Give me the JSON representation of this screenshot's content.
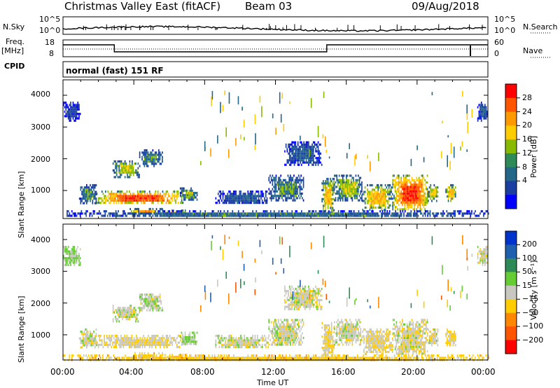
{
  "header": {
    "station": "Christmas Valley East (fitACF)",
    "beam": "Beam 03",
    "date": "09/Aug/2018"
  },
  "strip": {
    "nsky_label": "N.Sky",
    "nsky_ticks": [
      "10^5",
      "10^0"
    ],
    "nsearch_label": "N.Search",
    "nsearch_ticks": [
      "10^5",
      "10^0"
    ],
    "freq_label": "Freq.",
    "freq_unit": "[MHz]",
    "freq_ticks": [
      "18",
      "8"
    ],
    "nave_label": "Nave",
    "nave_ticks": [
      "60",
      "0"
    ],
    "cpid_label": "CPID",
    "cpid_value": "normal (fast) 151 RF",
    "nsky_line_color": "#000000",
    "freq_line_color": "#000000"
  },
  "panels": [
    {
      "id": "power",
      "ylabel": "Slant Range [km]",
      "yticks": [
        "4000",
        "3000",
        "2000",
        "1000"
      ],
      "colorbar": {
        "label": "Power [dB]",
        "ticks": [
          "28",
          "24",
          "20",
          "16",
          "12",
          "8",
          "4"
        ],
        "colors": [
          "#ff0000",
          "#ff5500",
          "#ff9900",
          "#ffcc00",
          "#88bb00",
          "#2e8b57",
          "#226688",
          "#1a3fa0",
          "#0000ff"
        ]
      }
    },
    {
      "id": "velocity",
      "ylabel": "Slant Range [km]",
      "yticks": [
        "4000",
        "3000",
        "2000",
        "1000"
      ],
      "colorbar": {
        "label": "Velocity [m s⁻¹]",
        "ticks": [
          "200",
          "100",
          "50",
          "15",
          "−15",
          "−50",
          "−100",
          "−200"
        ],
        "colors": [
          "#0033cc",
          "#1f5fb0",
          "#2e8b57",
          "#66cc33",
          "#c8c8c0",
          "#ffcc00",
          "#ff8800",
          "#ff5500",
          "#ff0000"
        ]
      }
    }
  ],
  "xaxis": {
    "label": "Time UT",
    "ticks": [
      "00:00",
      "04:00",
      "08:00",
      "12:00",
      "16:00",
      "20:00",
      "00:00"
    ]
  },
  "chart_data": {
    "type": "heatmap",
    "title": "Christmas Valley East (fitACF)",
    "subtitle": "Beam 03",
    "date": "09/Aug/2018",
    "x_unit": "hours UT",
    "xlim": [
      0,
      24
    ],
    "ylim": [
      180,
      4500
    ],
    "xlabel": "Time UT",
    "ylabel": "Slant Range [km]",
    "freq_mhz": [
      {
        "from": 0,
        "to": 2.9,
        "value": 16
      },
      {
        "from": 2.9,
        "to": 14.9,
        "value": 11
      },
      {
        "from": 14.9,
        "to": 24,
        "value": 16
      }
    ],
    "nave_level": 8,
    "cpid": "normal (fast) 151 RF",
    "power_scale_db": [
      4,
      8,
      12,
      16,
      20,
      24,
      28
    ],
    "velocity_scale_ms": [
      -200,
      -100,
      -50,
      -15,
      15,
      50,
      100,
      200
    ],
    "echo_regions": [
      {
        "t0": 1.9,
        "t1": 6.8,
        "r0": 600,
        "r1": 1000,
        "power_db": 28,
        "velocity_ms": -10
      },
      {
        "t0": 0.9,
        "t1": 1.9,
        "r0": 600,
        "r1": 1200,
        "power_db": 12,
        "velocity_ms": 0
      },
      {
        "t0": 6.6,
        "t1": 7.6,
        "r0": 700,
        "r1": 1100,
        "power_db": 14,
        "velocity_ms": 10
      },
      {
        "t0": 2.8,
        "t1": 4.3,
        "r0": 1450,
        "r1": 1950,
        "power_db": 16,
        "velocity_ms": 0
      },
      {
        "t0": 4.3,
        "t1": 5.6,
        "r0": 1800,
        "r1": 2300,
        "power_db": 12,
        "velocity_ms": 5
      },
      {
        "t0": 3.7,
        "t1": 5.6,
        "r0": 300,
        "r1": 450,
        "power_db": 22,
        "velocity_ms": -30
      },
      {
        "t0": 5.6,
        "t1": 7.0,
        "r0": 280,
        "r1": 400,
        "power_db": 20,
        "velocity_ms": -40
      },
      {
        "t0": 8.6,
        "t1": 11.6,
        "r0": 580,
        "r1": 1000,
        "power_db": 8,
        "velocity_ms": 0
      },
      {
        "t0": 11.6,
        "t1": 13.6,
        "r0": 680,
        "r1": 1500,
        "power_db": 12,
        "velocity_ms": 0
      },
      {
        "t0": 14.6,
        "t1": 15.3,
        "r0": 300,
        "r1": 1400,
        "power_db": 20,
        "velocity_ms": -15
      },
      {
        "t0": 15.3,
        "t1": 16.9,
        "r0": 700,
        "r1": 1500,
        "power_db": 16,
        "velocity_ms": 0
      },
      {
        "t0": 16.9,
        "t1": 18.6,
        "r0": 380,
        "r1": 1200,
        "power_db": 20,
        "velocity_ms": -10
      },
      {
        "t0": 18.6,
        "t1": 20.6,
        "r0": 380,
        "r1": 1500,
        "power_db": 28,
        "velocity_ms": -5
      },
      {
        "t0": 20.6,
        "t1": 21.2,
        "r0": 700,
        "r1": 1200,
        "power_db": 18,
        "velocity_ms": 0
      },
      {
        "t0": 21.6,
        "t1": 22.2,
        "r0": 700,
        "r1": 1200,
        "power_db": 20,
        "velocity_ms": -15
      },
      {
        "t0": 12.5,
        "t1": 14.6,
        "r0": 1800,
        "r1": 2550,
        "power_db": 8,
        "velocity_ms": 0
      },
      {
        "t0": 0.0,
        "t1": 1.0,
        "r0": 3200,
        "r1": 3800,
        "power_db": 6,
        "velocity_ms": 20
      },
      {
        "t0": 23.4,
        "t1": 24.0,
        "r0": 3200,
        "r1": 3800,
        "power_db": 8,
        "velocity_ms": 0
      },
      {
        "t0": 0.0,
        "t1": 24.0,
        "r0": 180,
        "r1": 380,
        "power_db": 10,
        "velocity_ms": -30
      }
    ]
  }
}
